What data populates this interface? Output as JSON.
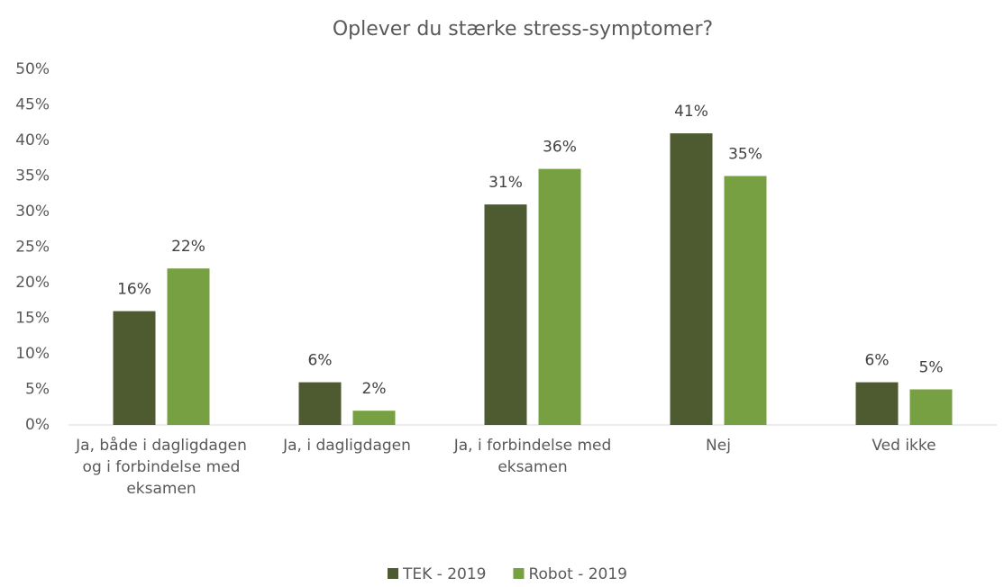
{
  "chart_data": {
    "type": "bar",
    "title": "Oplever du stærke stress-symptomer?",
    "categories": [
      "Ja, både i dagligdagen og i forbindelse med eksamen",
      "Ja, i dagligdagen",
      "Ja, i forbindelse med eksamen",
      "Nej",
      "Ved ikke"
    ],
    "series": [
      {
        "name": "TEK - 2019",
        "color": "#4e5b31",
        "values": [
          16,
          6,
          31,
          41,
          6
        ],
        "value_labels": [
          "16%",
          "6%",
          "31%",
          "41%",
          "6%"
        ]
      },
      {
        "name": "Robot - 2019",
        "color": "#77a043",
        "values": [
          22,
          2,
          36,
          35,
          5
        ],
        "value_labels": [
          "22%",
          "2%",
          "36%",
          "35%",
          "5%"
        ]
      }
    ],
    "ylim": [
      0,
      50
    ],
    "yticks": [
      {
        "value": 0,
        "label": "0%"
      },
      {
        "value": 5,
        "label": "5%"
      },
      {
        "value": 10,
        "label": "10%"
      },
      {
        "value": 15,
        "label": "15%"
      },
      {
        "value": 20,
        "label": "20%"
      },
      {
        "value": 25,
        "label": "25%"
      },
      {
        "value": 30,
        "label": "30%"
      },
      {
        "value": 35,
        "label": "35%"
      },
      {
        "value": 40,
        "label": "40%"
      },
      {
        "value": 45,
        "label": "45%"
      },
      {
        "value": 50,
        "label": "50%"
      }
    ],
    "grid": false,
    "legend": "bottom"
  }
}
